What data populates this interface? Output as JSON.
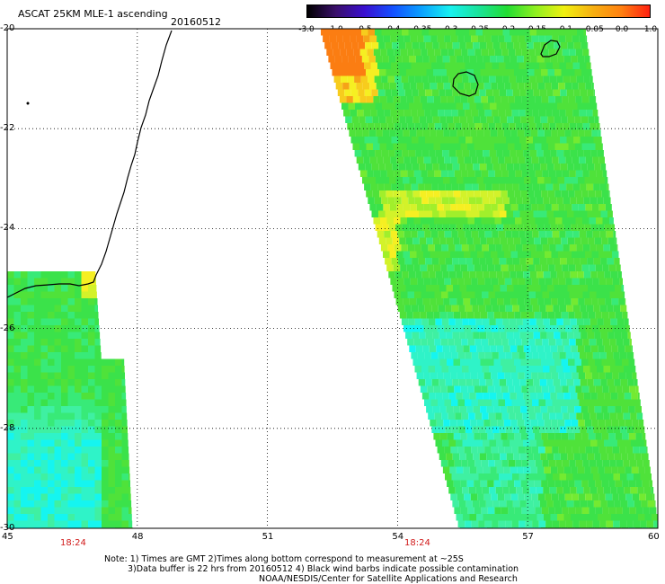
{
  "header": {
    "title": "ASCAT 25KM MLE-1 ascending",
    "date": "20160512"
  },
  "colorbar": {
    "ticks": [
      "-3.0",
      "-1.0",
      "-0.5",
      "-0.4",
      "-0.35",
      "-0.3",
      "-0.25",
      "-0.2",
      "-0.15",
      "-0.1",
      "-0.05",
      "0.0",
      "1.0"
    ],
    "colors": [
      "#000000",
      "#3a0f6a",
      "#3a0fd0",
      "#1450ff",
      "#0aa0ff",
      "#18f0f0",
      "#19e39a",
      "#22dd33",
      "#8ff020",
      "#f0f010",
      "#f6b011",
      "#ff8010",
      "#ff2010"
    ]
  },
  "map": {
    "lat_range": [
      -30,
      -20
    ],
    "lon_range": [
      45,
      60
    ],
    "lat_labels": [
      "-20",
      "-22",
      "-24",
      "-26",
      "-28",
      "-30"
    ],
    "lon_labels": [
      "45",
      "48",
      "51",
      "54",
      "57",
      "60"
    ],
    "time_labels": [
      "18:24",
      "18:24"
    ]
  },
  "footer": {
    "line1": "Note: 1) Times are GMT 2)Times along bottom correspond to measurement at ~25S",
    "line2": "3)Data buffer is 22 hrs from 20160512 4) Black wind barbs indicate possible contamination",
    "line3": "NOAA/NESDIS/Center for Satellite Applications and Research"
  }
}
